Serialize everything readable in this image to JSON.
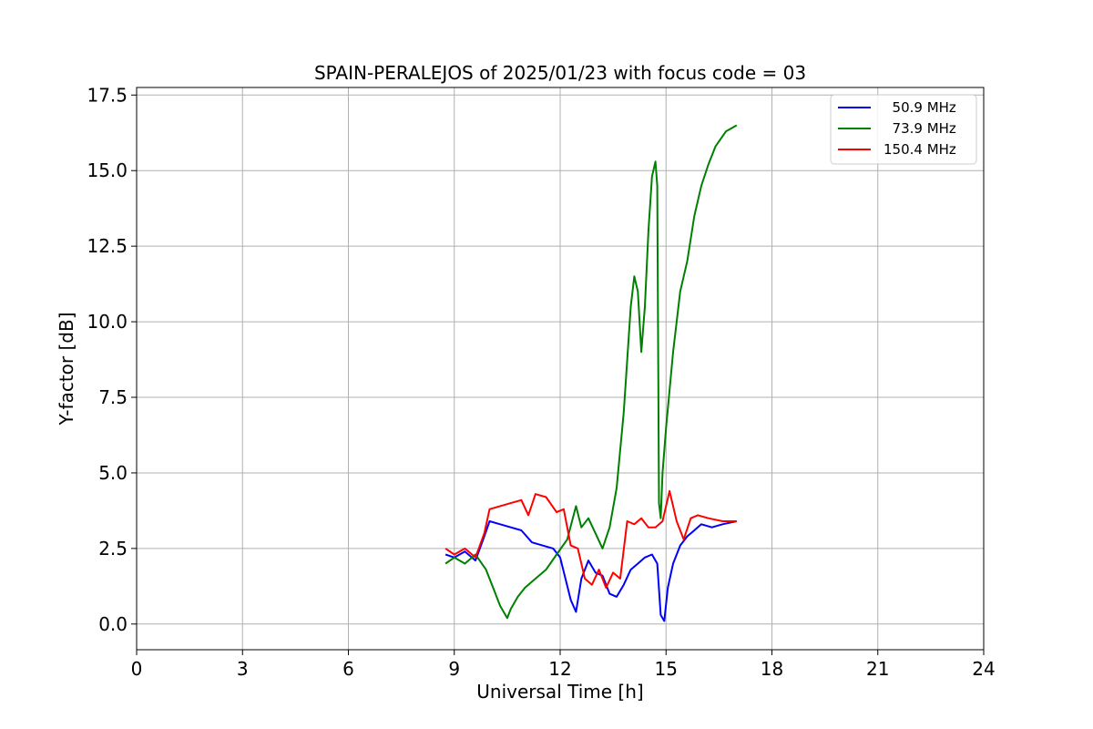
{
  "chart_data": {
    "type": "line",
    "title": "SPAIN-PERALEJOS of 2025/01/23 with focus code = 03",
    "xlabel": "Universal Time [h]",
    "ylabel": "Y-factor [dB]",
    "xlim": [
      0,
      24
    ],
    "ylim": [
      -0.85,
      17.75
    ],
    "xticks": [
      0,
      3,
      6,
      9,
      12,
      15,
      18,
      21,
      24
    ],
    "xtick_labels": [
      "0",
      "3",
      "6",
      "9",
      "12",
      "15",
      "18",
      "21",
      "24"
    ],
    "yticks": [
      0,
      2.5,
      5,
      7.5,
      10,
      12.5,
      15,
      17.5
    ],
    "ytick_labels": [
      "0.0",
      "2.5",
      "5.0",
      "7.5",
      "10.0",
      "12.5",
      "15.0",
      "17.5"
    ],
    "grid": true,
    "legend_position": "top-right",
    "series": [
      {
        "name": "  50.9 MHz",
        "color": "#0000ff",
        "x": [
          8.75,
          9.0,
          9.3,
          9.6,
          9.85,
          10.0,
          10.3,
          10.6,
          10.9,
          11.2,
          11.5,
          11.8,
          12.0,
          12.15,
          12.3,
          12.45,
          12.6,
          12.8,
          13.0,
          13.2,
          13.4,
          13.6,
          13.8,
          14.0,
          14.2,
          14.4,
          14.6,
          14.75,
          14.85,
          14.95,
          15.05,
          15.2,
          15.4,
          15.6,
          15.8,
          16.0,
          16.3,
          16.6,
          17.0
        ],
        "y": [
          2.3,
          2.2,
          2.4,
          2.1,
          2.9,
          3.4,
          3.3,
          3.2,
          3.1,
          2.7,
          2.6,
          2.5,
          2.2,
          1.5,
          0.8,
          0.4,
          1.5,
          2.1,
          1.7,
          1.6,
          1.0,
          0.9,
          1.3,
          1.8,
          2.0,
          2.2,
          2.3,
          2.0,
          0.3,
          0.1,
          1.2,
          2.0,
          2.6,
          2.9,
          3.1,
          3.3,
          3.2,
          3.3,
          3.4
        ]
      },
      {
        "name": "  73.9 MHz",
        "color": "#008000",
        "x": [
          8.75,
          9.0,
          9.3,
          9.6,
          9.9,
          10.1,
          10.3,
          10.5,
          10.6,
          10.8,
          11.0,
          11.3,
          11.6,
          11.9,
          12.2,
          12.45,
          12.6,
          12.8,
          13.0,
          13.2,
          13.4,
          13.6,
          13.8,
          14.0,
          14.1,
          14.2,
          14.3,
          14.4,
          14.5,
          14.6,
          14.7,
          14.75,
          14.8,
          14.85,
          14.9,
          15.0,
          15.2,
          15.4,
          15.6,
          15.8,
          16.0,
          16.2,
          16.4,
          16.7,
          17.0
        ],
        "y": [
          2.0,
          2.2,
          2.0,
          2.3,
          1.8,
          1.2,
          0.6,
          0.2,
          0.5,
          0.9,
          1.2,
          1.5,
          1.8,
          2.3,
          2.8,
          3.9,
          3.2,
          3.5,
          3.0,
          2.5,
          3.2,
          4.5,
          7.0,
          10.5,
          11.5,
          11.0,
          9.0,
          10.5,
          13.0,
          14.8,
          15.3,
          14.5,
          4.0,
          3.5,
          5.0,
          6.5,
          9.0,
          11.0,
          12.0,
          13.5,
          14.5,
          15.2,
          15.8,
          16.3,
          16.5
        ]
      },
      {
        "name": "150.4 MHz",
        "color": "#ff0000",
        "x": [
          8.75,
          9.0,
          9.3,
          9.6,
          9.85,
          10.0,
          10.3,
          10.6,
          10.9,
          11.1,
          11.3,
          11.6,
          11.9,
          12.1,
          12.3,
          12.5,
          12.7,
          12.9,
          13.1,
          13.3,
          13.5,
          13.7,
          13.9,
          14.1,
          14.3,
          14.5,
          14.7,
          14.9,
          15.1,
          15.3,
          15.5,
          15.7,
          15.9,
          16.2,
          16.6,
          17.0
        ],
        "y": [
          2.5,
          2.3,
          2.5,
          2.2,
          3.0,
          3.8,
          3.9,
          4.0,
          4.1,
          3.6,
          4.3,
          4.2,
          3.7,
          3.8,
          2.6,
          2.5,
          1.5,
          1.3,
          1.8,
          1.2,
          1.7,
          1.5,
          3.4,
          3.3,
          3.5,
          3.2,
          3.2,
          3.4,
          4.4,
          3.4,
          2.8,
          3.5,
          3.6,
          3.5,
          3.4,
          3.4
        ]
      }
    ]
  }
}
